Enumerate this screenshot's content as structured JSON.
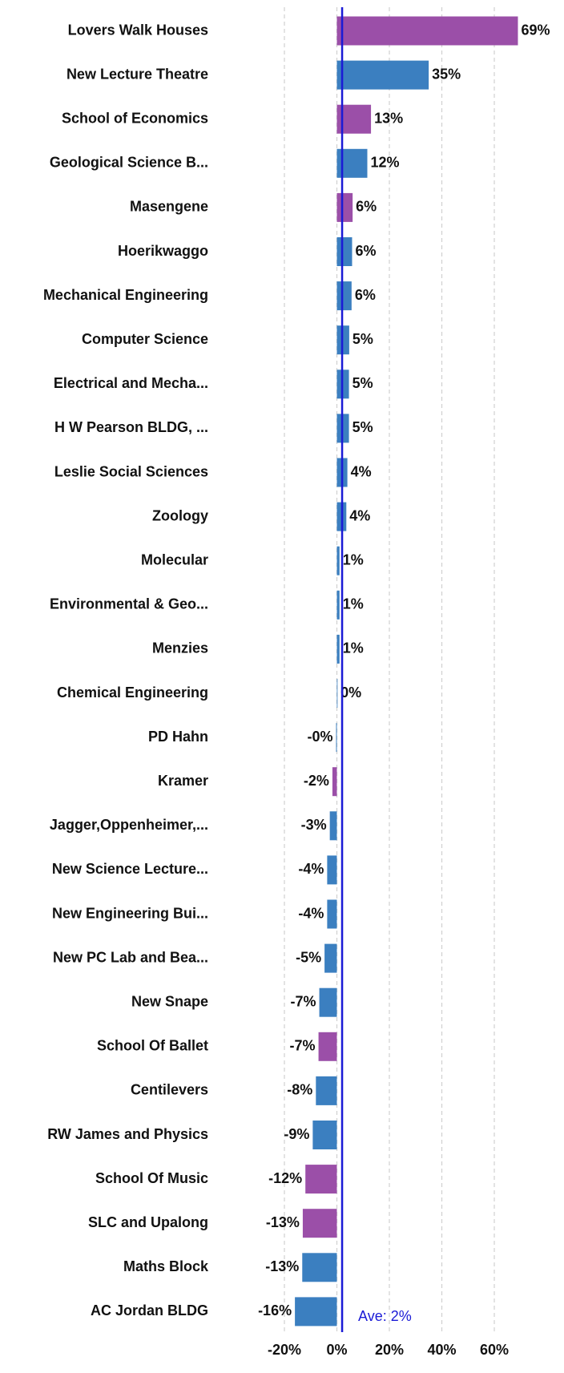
{
  "chart_data": {
    "type": "barh",
    "categories": [
      "Lovers Walk Houses",
      "New Lecture Theatre",
      "School of Economics",
      "Geological Science B...",
      "Masengene",
      "Hoerikwaggo",
      "Mechanical Engineering",
      "Computer Science",
      "Electrical and Mecha...",
      "H W Pearson BLDG, ...",
      "Leslie Social Sciences",
      "Zoology",
      "Molecular",
      "Environmental & Geo...",
      "Menzies",
      "Chemical Engineering",
      "PD Hahn",
      "Kramer",
      "Jagger,Oppenheimer,...",
      "New Science Lecture...",
      "New Engineering Bui...",
      "New PC Lab and Bea...",
      "New Snape",
      "School Of Ballet",
      "Centilevers",
      "RW James and Physics",
      "School Of Music",
      "SLC and Upalong",
      "Maths Block",
      "AC Jordan BLDG"
    ],
    "values": [
      69,
      35,
      13,
      11.6,
      6,
      5.8,
      5.6,
      4.7,
      4.6,
      4.6,
      4,
      3.6,
      1,
      1,
      1,
      0.2,
      -0.3,
      -1.7,
      -2.7,
      -3.7,
      -3.7,
      -4.7,
      -6.7,
      -7,
      -8,
      -9.2,
      -12,
      -13,
      -13.2,
      -16
    ],
    "value_labels": [
      "69%",
      "35%",
      "13%",
      "12%",
      "6%",
      "6%",
      "6%",
      "5%",
      "5%",
      "5%",
      "4%",
      "4%",
      "1%",
      "1%",
      "1%",
      "0%",
      "-0%",
      "-2%",
      "-3%",
      "-4%",
      "-4%",
      "-5%",
      "-7%",
      "-7%",
      "-8%",
      "-9%",
      "-12%",
      "-13%",
      "-13%",
      "-16%"
    ],
    "colors": [
      "#9b4fa8",
      "#3b7fc0",
      "#9b4fa8",
      "#3b7fc0",
      "#9b4fa8",
      "#3b7fc0",
      "#3b7fc0",
      "#3b7fc0",
      "#3b7fc0",
      "#3b7fc0",
      "#3b7fc0",
      "#3b7fc0",
      "#3b7fc0",
      "#3b7fc0",
      "#3b7fc0",
      "#3b7fc0",
      "#3b7fc0",
      "#9b4fa8",
      "#3b7fc0",
      "#3b7fc0",
      "#3b7fc0",
      "#3b7fc0",
      "#3b7fc0",
      "#9b4fa8",
      "#3b7fc0",
      "#3b7fc0",
      "#9b4fa8",
      "#9b4fa8",
      "#3b7fc0",
      "#3b7fc0"
    ],
    "xlim": [
      -20,
      60
    ],
    "xticks": [
      {
        "value": -20,
        "label": "-20%"
      },
      {
        "value": 0,
        "label": "0%"
      },
      {
        "value": 20,
        "label": "20%"
      },
      {
        "value": 40,
        "label": "40%"
      },
      {
        "value": 60,
        "label": "60%"
      }
    ],
    "grid": true,
    "average": {
      "value": 2,
      "label": "Ave: 2%",
      "color": "#1a1ad6"
    }
  }
}
